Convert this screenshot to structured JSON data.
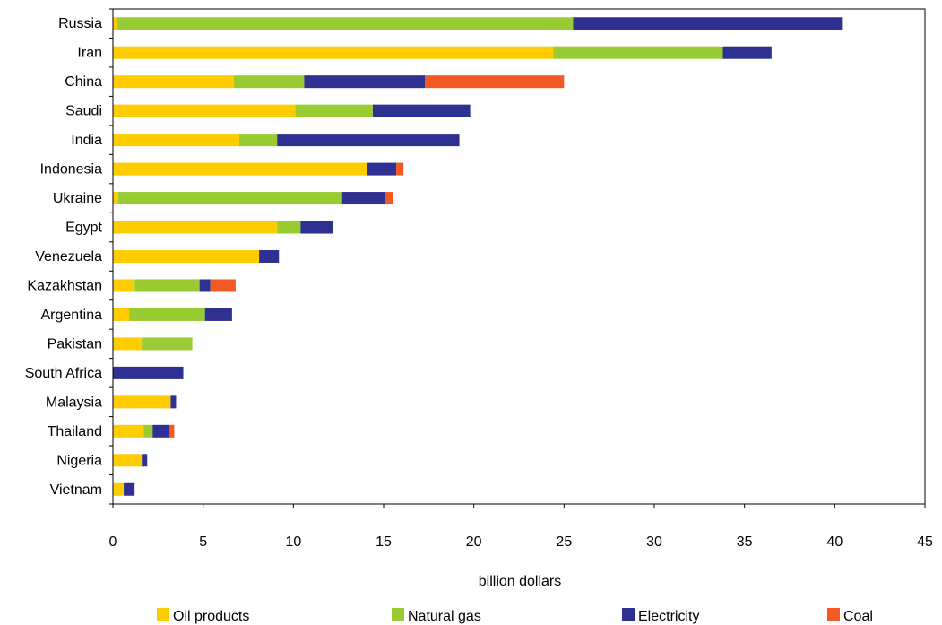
{
  "chart_data": {
    "type": "bar",
    "orientation": "horizontal",
    "stacked": true,
    "title": "",
    "xlabel": "billion dollars",
    "ylabel": "",
    "xlim": [
      0,
      45
    ],
    "xticks": [
      0,
      5,
      10,
      15,
      20,
      25,
      30,
      35,
      40,
      45
    ],
    "grid": false,
    "legend_position": "bottom",
    "categories": [
      "Russia",
      "Iran",
      "China",
      "Saudi",
      "India",
      "Indonesia",
      "Ukraine",
      "Egypt",
      "Venezuela",
      "Kazakhstan",
      "Argentina",
      "Pakistan",
      "South Africa",
      "Malaysia",
      "Thailand",
      "Nigeria",
      "Vietnam"
    ],
    "series": [
      {
        "name": "Oil products",
        "color": "#ffcc00",
        "values": [
          0.2,
          24.4,
          6.7,
          10.1,
          7.0,
          14.1,
          0.3,
          9.1,
          8.1,
          1.2,
          0.9,
          1.6,
          0,
          3.2,
          1.7,
          1.6,
          0.6
        ]
      },
      {
        "name": "Natural gas",
        "color": "#99cc33",
        "values": [
          25.3,
          9.4,
          3.9,
          4.3,
          2.1,
          0,
          12.4,
          1.3,
          0,
          3.6,
          4.2,
          2.8,
          0,
          0,
          0.5,
          0,
          0
        ]
      },
      {
        "name": "Electricity",
        "color": "#2e3192",
        "values": [
          14.9,
          2.7,
          6.7,
          5.4,
          10.1,
          1.6,
          2.4,
          1.8,
          1.1,
          0.6,
          1.5,
          0,
          3.9,
          0.3,
          0.9,
          0.3,
          0.6
        ]
      },
      {
        "name": "Coal",
        "color": "#f15a24",
        "values": [
          0,
          0,
          7.7,
          0,
          0,
          0.4,
          0.4,
          0,
          0,
          1.4,
          0,
          0,
          0,
          0,
          0.3,
          0,
          0
        ]
      }
    ]
  }
}
